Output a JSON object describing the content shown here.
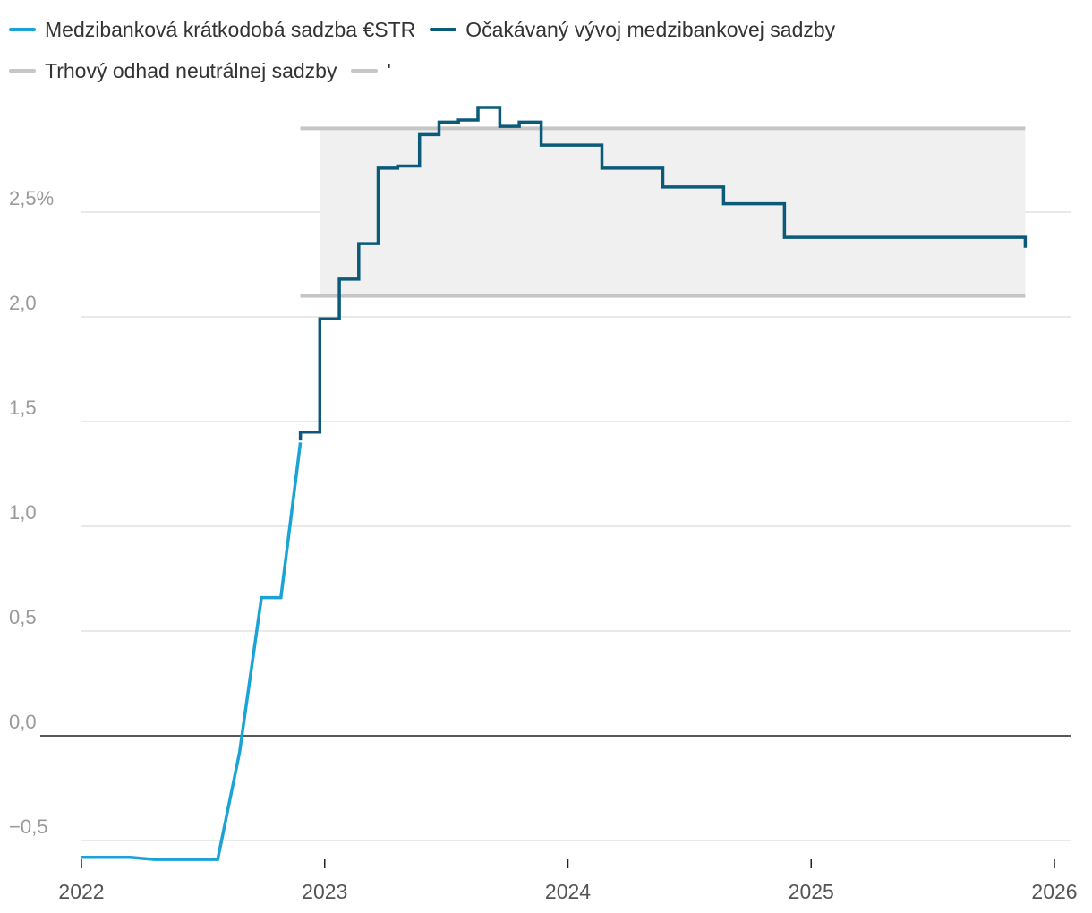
{
  "colors": {
    "estr": "#1aa3d4",
    "expected": "#0b5a7a",
    "neutral_band": "#f0f0f0",
    "neutral_lines": "#c6c6c6",
    "grid": "#e2e2e2",
    "zero_line": "#222222",
    "tick_text": "#9a9a9a",
    "xtick_text": "#555555"
  },
  "chart_data": {
    "type": "line",
    "title": "",
    "xlabel": "",
    "ylabel": "",
    "xlim": [
      2022,
      2026.1
    ],
    "ylim": [
      -0.6,
      3.0
    ],
    "yticks": [
      -0.5,
      0.0,
      0.5,
      1.0,
      1.5,
      2.0,
      2.5
    ],
    "ytick_labels": [
      "−0,5",
      "0,0",
      "0,5",
      "1,0",
      "1,5",
      "2,0",
      "2,5%"
    ],
    "xticks": [
      2022,
      2023,
      2024,
      2025,
      2026
    ],
    "xtick_labels": [
      "2022",
      "2023",
      "2024",
      "2025",
      "2026"
    ],
    "grid": true,
    "legend": {
      "placement": "top-left",
      "entries": [
        [
          "Medzibanková krátkodobá sadzba €STR",
          "Očakávaný vývoj medzibankovej sadzby"
        ],
        [
          "Trhový odhad neutrálnej sadzby",
          "'"
        ]
      ]
    },
    "neutral_range": {
      "x_start": 2022.9,
      "x_end": 2025.88,
      "band_x_start": 2022.98,
      "low": 2.1,
      "high": 2.9
    },
    "series": [
      {
        "name": "Medzibanková krátkodobá sadzba €STR",
        "style": "line",
        "points": [
          [
            2022.0,
            -0.58
          ],
          [
            2022.1,
            -0.58
          ],
          [
            2022.2,
            -0.58
          ],
          [
            2022.3,
            -0.59
          ],
          [
            2022.4,
            -0.59
          ],
          [
            2022.5,
            -0.59
          ],
          [
            2022.56,
            -0.59
          ],
          [
            2022.65,
            -0.08
          ],
          [
            2022.74,
            0.66
          ],
          [
            2022.82,
            0.66
          ],
          [
            2022.9,
            1.4
          ]
        ]
      },
      {
        "name": "Očakávaný vývoj medzibankovej sadzby",
        "style": "step",
        "points": [
          [
            2022.9,
            1.41
          ],
          [
            2022.9,
            1.45
          ],
          [
            2022.98,
            1.45
          ],
          [
            2022.98,
            1.99
          ],
          [
            2023.06,
            1.99
          ],
          [
            2023.06,
            2.18
          ],
          [
            2023.14,
            2.18
          ],
          [
            2023.14,
            2.35
          ],
          [
            2023.22,
            2.35
          ],
          [
            2023.22,
            2.71
          ],
          [
            2023.3,
            2.71
          ],
          [
            2023.3,
            2.72
          ],
          [
            2023.39,
            2.72
          ],
          [
            2023.39,
            2.87
          ],
          [
            2023.47,
            2.87
          ],
          [
            2023.47,
            2.93
          ],
          [
            2023.55,
            2.93
          ],
          [
            2023.55,
            2.94
          ],
          [
            2023.63,
            2.94
          ],
          [
            2023.63,
            3.0
          ],
          [
            2023.72,
            3.0
          ],
          [
            2023.72,
            2.91
          ],
          [
            2023.8,
            2.91
          ],
          [
            2023.8,
            2.93
          ],
          [
            2023.89,
            2.93
          ],
          [
            2023.89,
            2.82
          ],
          [
            2024.14,
            2.82
          ],
          [
            2024.14,
            2.71
          ],
          [
            2024.39,
            2.71
          ],
          [
            2024.39,
            2.62
          ],
          [
            2024.64,
            2.62
          ],
          [
            2024.64,
            2.54
          ],
          [
            2024.89,
            2.54
          ],
          [
            2024.89,
            2.38
          ],
          [
            2025.88,
            2.38
          ],
          [
            2025.88,
            2.33
          ]
        ]
      }
    ]
  }
}
